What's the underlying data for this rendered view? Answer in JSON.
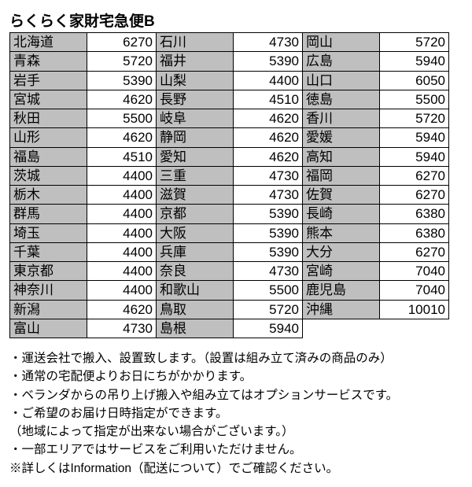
{
  "title": "らくらく家財宅急便B",
  "columns": [
    [
      {
        "pref": "北海道",
        "price": 6270
      },
      {
        "pref": "青森",
        "price": 5720
      },
      {
        "pref": "岩手",
        "price": 5390
      },
      {
        "pref": "宮城",
        "price": 4620
      },
      {
        "pref": "秋田",
        "price": 5500
      },
      {
        "pref": "山形",
        "price": 4620
      },
      {
        "pref": "福島",
        "price": 4510
      },
      {
        "pref": "茨城",
        "price": 4400
      },
      {
        "pref": "栃木",
        "price": 4400
      },
      {
        "pref": "群馬",
        "price": 4400
      },
      {
        "pref": "埼玉",
        "price": 4400
      },
      {
        "pref": "千葉",
        "price": 4400
      },
      {
        "pref": "東京都",
        "price": 4400
      },
      {
        "pref": "神奈川",
        "price": 4400
      },
      {
        "pref": "新潟",
        "price": 4620
      },
      {
        "pref": "富山",
        "price": 4730
      }
    ],
    [
      {
        "pref": "石川",
        "price": 4730
      },
      {
        "pref": "福井",
        "price": 5390
      },
      {
        "pref": "山梨",
        "price": 4400
      },
      {
        "pref": "長野",
        "price": 4510
      },
      {
        "pref": "岐阜",
        "price": 4620
      },
      {
        "pref": "静岡",
        "price": 4620
      },
      {
        "pref": "愛知",
        "price": 4620
      },
      {
        "pref": "三重",
        "price": 4730
      },
      {
        "pref": "滋賀",
        "price": 4730
      },
      {
        "pref": "京都",
        "price": 5390
      },
      {
        "pref": "大阪",
        "price": 5390
      },
      {
        "pref": "兵庫",
        "price": 5390
      },
      {
        "pref": "奈良",
        "price": 4730
      },
      {
        "pref": "和歌山",
        "price": 5500
      },
      {
        "pref": "鳥取",
        "price": 5720
      },
      {
        "pref": "島根",
        "price": 5940
      }
    ],
    [
      {
        "pref": "岡山",
        "price": 5720
      },
      {
        "pref": "広島",
        "price": 5940
      },
      {
        "pref": "山口",
        "price": 6050
      },
      {
        "pref": "徳島",
        "price": 5500
      },
      {
        "pref": "香川",
        "price": 5720
      },
      {
        "pref": "愛媛",
        "price": 5940
      },
      {
        "pref": "高知",
        "price": 5940
      },
      {
        "pref": "福岡",
        "price": 6270
      },
      {
        "pref": "佐賀",
        "price": 6270
      },
      {
        "pref": "長崎",
        "price": 6380
      },
      {
        "pref": "熊本",
        "price": 6380
      },
      {
        "pref": "大分",
        "price": 6270
      },
      {
        "pref": "宮崎",
        "price": 7040
      },
      {
        "pref": "鹿児島",
        "price": 7040
      },
      {
        "pref": "沖縄",
        "price": 10010
      }
    ]
  ],
  "notes": [
    "・運送会社で搬入、設置致します。（設置は組み立て済みの商品のみ）",
    "・通常の宅配便よりお日にちがかかります。",
    "・ベランダからの吊り上げ搬入や組み立てはオプションサービスです。",
    "・ご希望のお届け日時指定ができます。",
    "（地域によって指定が出来ない場合がございます。）",
    "・一部エリアではサービスをご利用いただけません。",
    "※詳しくはInformation（配送について）でご確認ください。"
  ],
  "style": {
    "pref_bg": "#bfbfbf",
    "price_bg": "#ffffff",
    "border_color": "#000000",
    "text_color": "#000000",
    "title_fontsize": 19,
    "cell_fontsize": 17,
    "notes_fontsize": 15.5
  }
}
